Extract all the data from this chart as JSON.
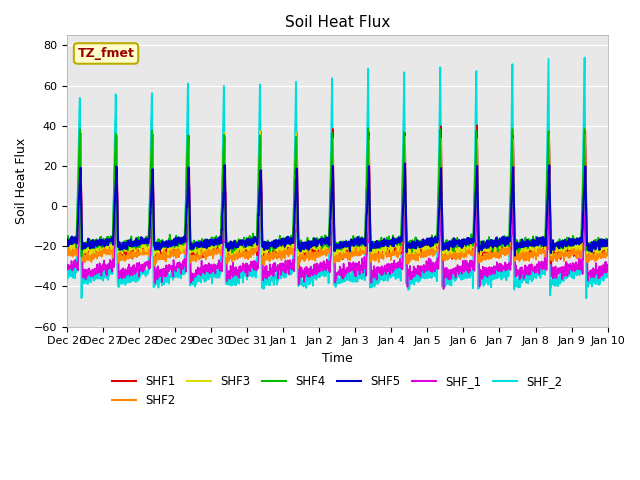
{
  "title": "Soil Heat Flux",
  "xlabel": "Time",
  "ylabel": "Soil Heat Flux",
  "ylim": [
    -60,
    85
  ],
  "yticks": [
    -60,
    -40,
    -20,
    0,
    20,
    40,
    60,
    80
  ],
  "fig_facecolor": "#ffffff",
  "plot_bg_color": "#e8e8e8",
  "annotation_text": "TZ_fmet",
  "annotation_bg": "#ffffcc",
  "annotation_edge": "#bbaa00",
  "annotation_text_color": "#990000",
  "series_colors": {
    "SHF1": "#dd0000",
    "SHF2": "#ff8800",
    "SHF3": "#dddd00",
    "SHF4": "#00bb00",
    "SHF5": "#0000cc",
    "SHF_1": "#dd00dd",
    "SHF_2": "#00dddd"
  },
  "grid_color": "#ffffff",
  "noise_seed": 42
}
